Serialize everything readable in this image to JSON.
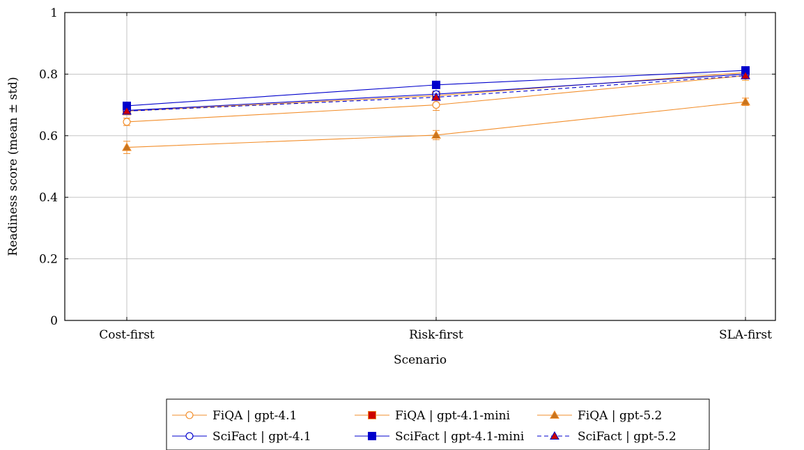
{
  "chart_data": {
    "type": "line",
    "xlabel": "Scenario",
    "ylabel": "Readiness score (mean ± std)",
    "categories": [
      "Cost-first",
      "Risk-first",
      "SLA-first"
    ],
    "ylim": [
      0,
      1
    ],
    "yticks": [
      "0",
      "0.2",
      "0.4",
      "0.6",
      "0.8",
      "1"
    ],
    "ytick_values": [
      0,
      0.2,
      0.4,
      0.6,
      0.8,
      1
    ],
    "grid": true,
    "legend_position": "bottom-center",
    "series": [
      {
        "name": "FiQA | gpt-4.1",
        "values": [
          0.645,
          0.7,
          0.795
        ],
        "err": [
          0.012,
          0.018,
          0.015
        ],
        "color": "#f28e2b",
        "marker": "open-circle",
        "dashed": false
      },
      {
        "name": "FiQA | gpt-4.1-mini",
        "values": [
          0.68,
          0.73,
          0.805
        ],
        "err": [
          0.01,
          0.01,
          0.012
        ],
        "color": "#f28e2b",
        "marker_fill": "#cc0000",
        "marker": "filled-square",
        "dashed": false
      },
      {
        "name": "FiQA | gpt-5.2",
        "values": [
          0.562,
          0.602,
          0.71
        ],
        "err": [
          0.02,
          0.015,
          0.012
        ],
        "color": "#f28e2b",
        "marker_fill": "#c8741e",
        "marker": "filled-triangle",
        "dashed": false
      },
      {
        "name": "SciFact | gpt-4.1",
        "values": [
          0.682,
          0.735,
          0.8
        ],
        "err": [
          0.01,
          0.01,
          0.012
        ],
        "color": "#0000cc",
        "marker": "open-circle",
        "dashed": false
      },
      {
        "name": "SciFact | gpt-4.1-mini",
        "values": [
          0.697,
          0.765,
          0.812
        ],
        "err": [
          0.012,
          0.01,
          0.012
        ],
        "color": "#0000cc",
        "marker_fill": "#0000cc",
        "marker": "filled-square",
        "dashed": false
      },
      {
        "name": "SciFact | gpt-5.2",
        "values": [
          0.68,
          0.725,
          0.795
        ],
        "err": [
          0.01,
          0.01,
          0.01
        ],
        "color": "#0000cc",
        "marker_fill": "#cc0000",
        "marker": "filled-triangle",
        "dashed": true
      }
    ]
  }
}
